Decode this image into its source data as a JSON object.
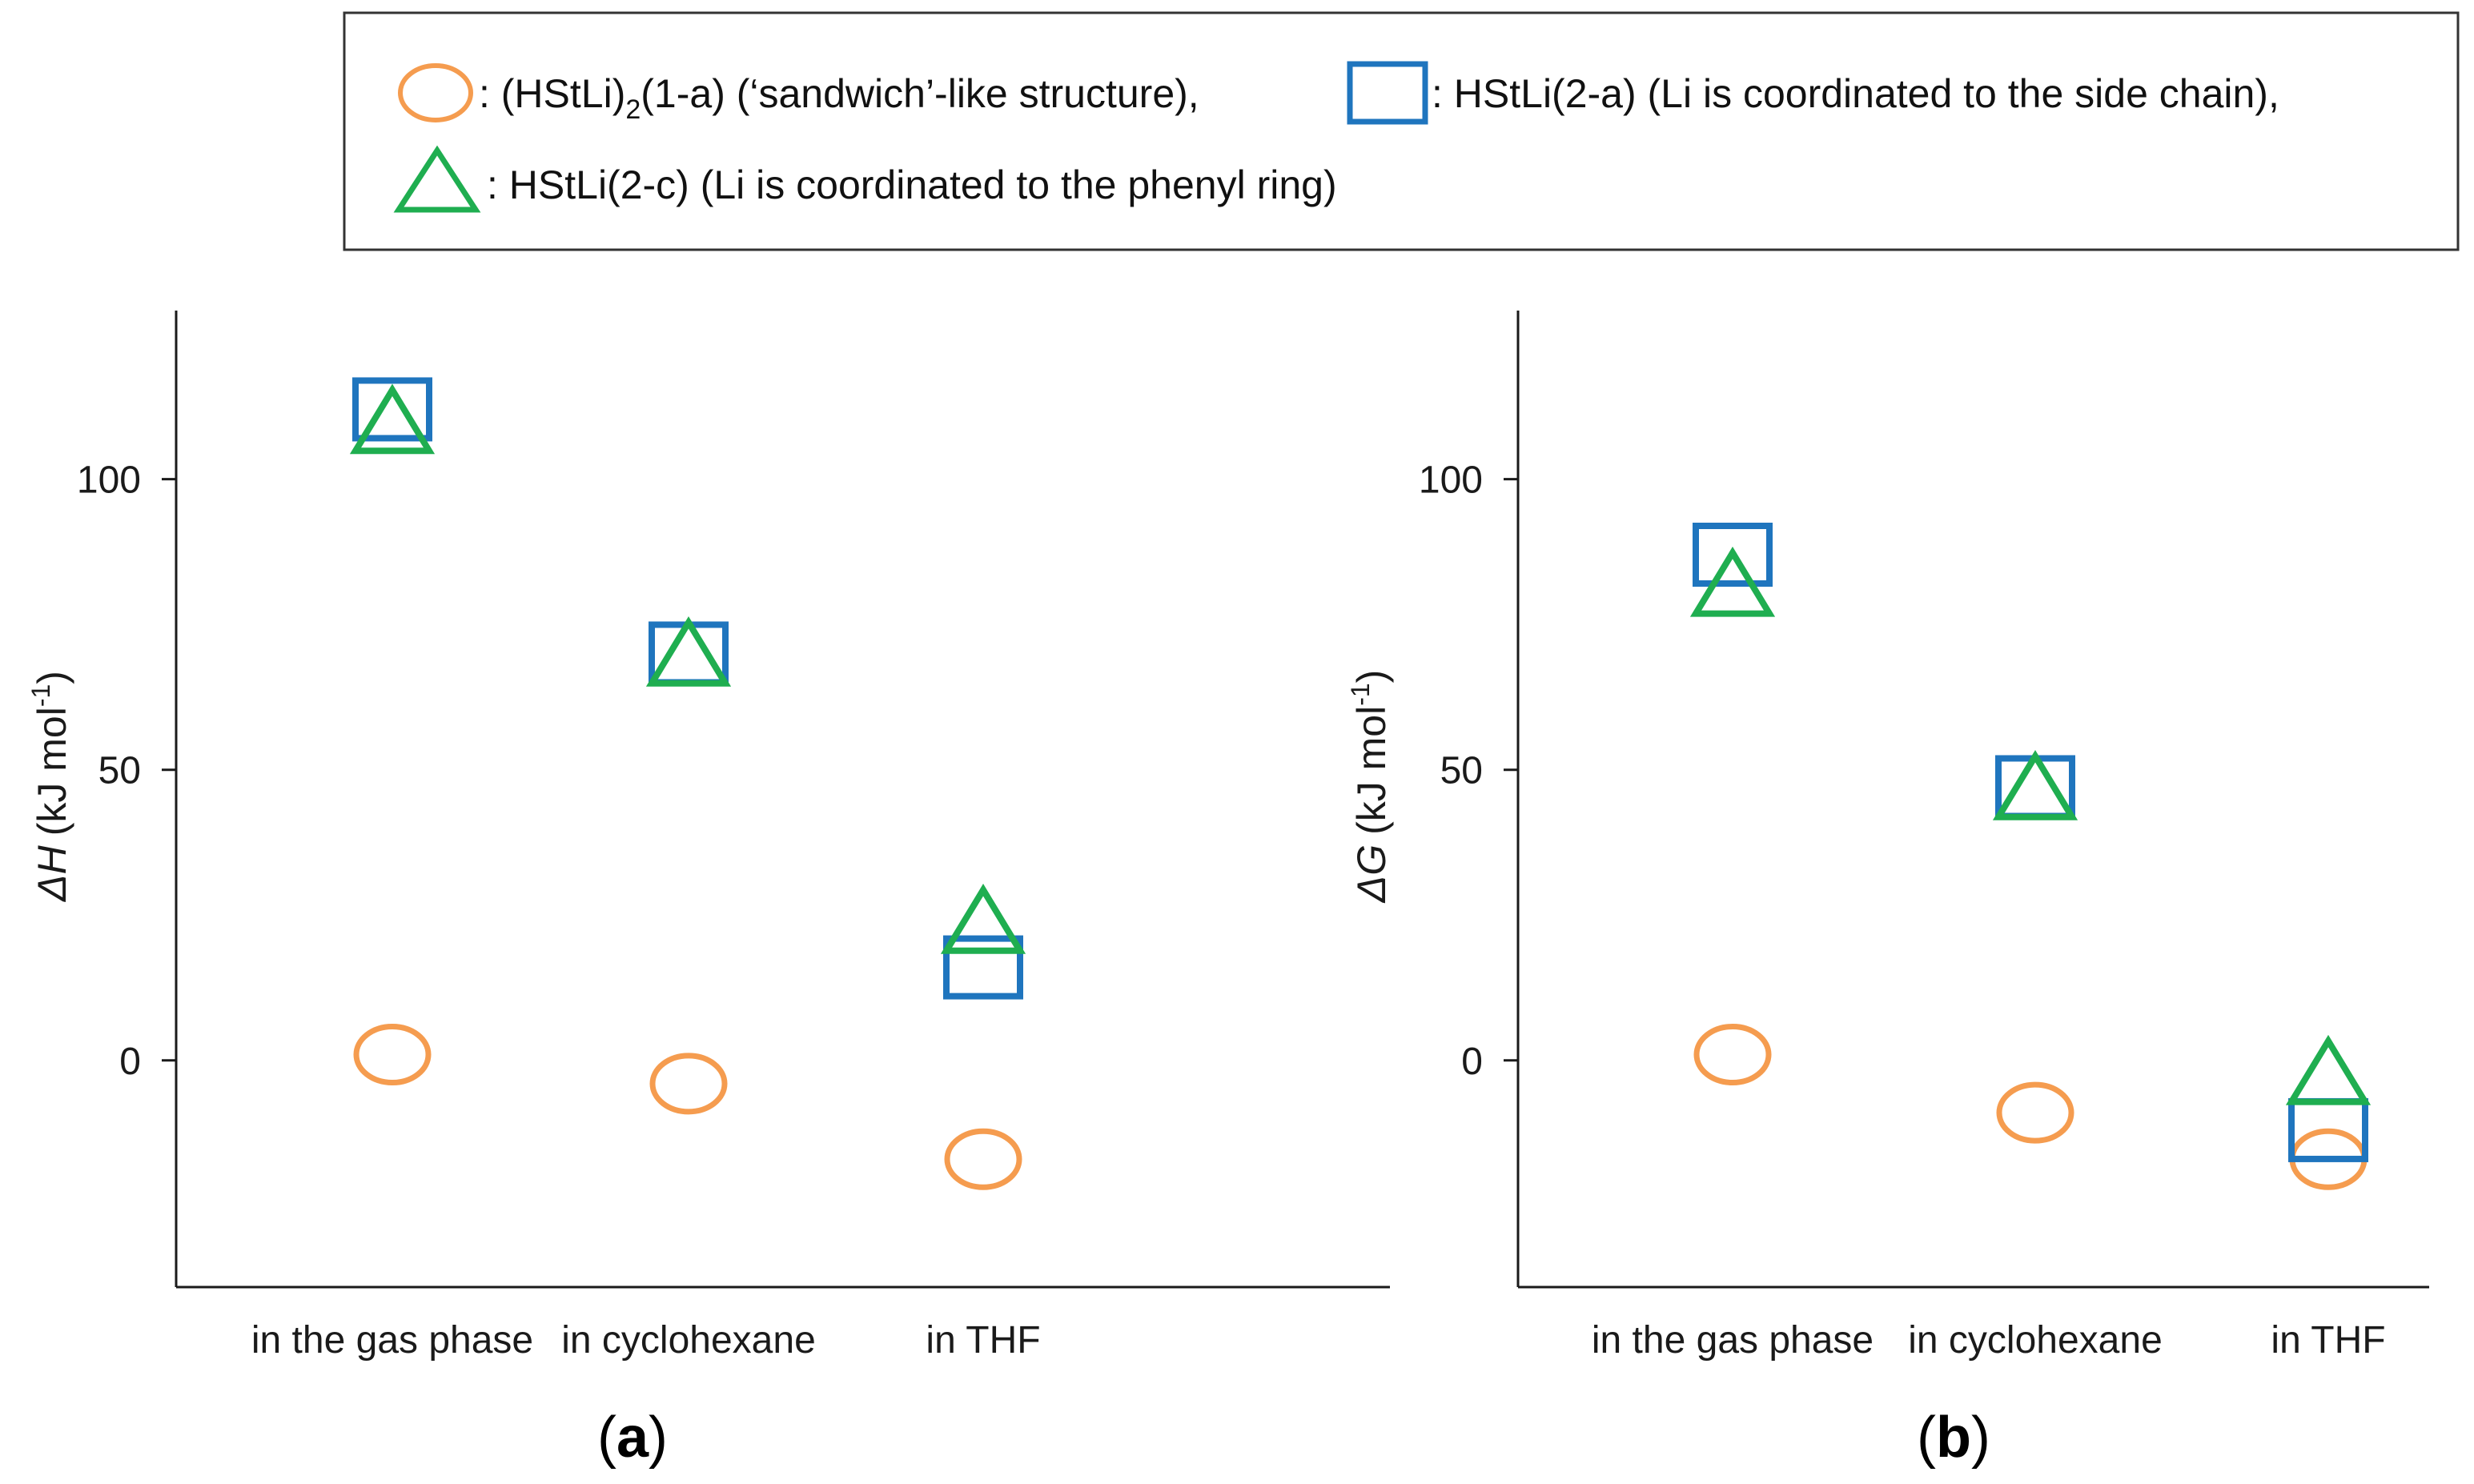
{
  "legend": {
    "items": [
      {
        "marker": "circle",
        "color": "#f59c4f",
        "pre": ": (HStLi)",
        "sub": "2",
        "post": "(1-a) (‘sandwich’-like structure),"
      },
      {
        "marker": "square",
        "color": "#1f75be",
        "text": ": HStLi(2-a) (Li is coordinated to the side chain),"
      },
      {
        "marker": "triangle",
        "color": "#1fae50",
        "text": ": HStLi(2-c) (Li is coordinated to the phenyl ring)"
      }
    ]
  },
  "chart_data": [
    {
      "type": "scatter",
      "panel_label": "a",
      "ylabel_symbol": "ΔH",
      "ylabel_unit": "(kJ mol",
      "ylabel_exp": "-1",
      "ylabel_close": ")",
      "categories": [
        "in the gas phase",
        "in cyclohexane",
        "in THF"
      ],
      "yticks": [
        0,
        50,
        100
      ],
      "ylim": [
        -39,
        129
      ],
      "series": [
        {
          "name": "(HStLi)2(1-a)",
          "marker": "circle",
          "color": "#f59c4f",
          "values": [
            1,
            -4,
            -17
          ]
        },
        {
          "name": "HStLi(2-a)",
          "marker": "square",
          "color": "#1f75be",
          "values": [
            112,
            70,
            16
          ]
        },
        {
          "name": "HStLi(2-c)",
          "marker": "triangle",
          "color": "#1fae50",
          "values": [
            109,
            69,
            23
          ]
        }
      ]
    },
    {
      "type": "scatter",
      "panel_label": "b",
      "ylabel_symbol": "ΔG",
      "ylabel_unit": "(kJ mol",
      "ylabel_exp": "-1",
      "ylabel_close": ")",
      "categories": [
        "in the gas phase",
        "in cyclohexane",
        "in THF"
      ],
      "yticks": [
        0,
        50,
        100
      ],
      "ylim": [
        -39,
        129
      ],
      "series": [
        {
          "name": "(HStLi)2(1-a)",
          "marker": "circle",
          "color": "#f59c4f",
          "values": [
            1,
            -9,
            -17
          ]
        },
        {
          "name": "HStLi(2-a)",
          "marker": "square",
          "color": "#1f75be",
          "values": [
            87,
            47,
            -12
          ]
        },
        {
          "name": "HStLi(2-c)",
          "marker": "triangle",
          "color": "#1fae50",
          "values": [
            81,
            46,
            -3
          ]
        }
      ]
    }
  ]
}
